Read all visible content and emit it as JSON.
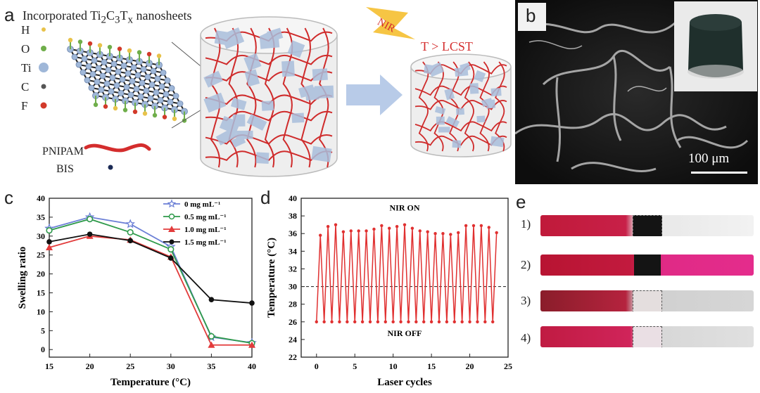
{
  "panel_a": {
    "letter": "a",
    "title_html": "Incorporated Ti<sub>2</sub>C<sub>3</sub>T<sub>x</sub> nanosheets",
    "elements": [
      "H",
      "O",
      "Ti",
      "C",
      "F"
    ],
    "element_colors": [
      "#e8c24a",
      "#6fae4a",
      "#9fb7d8",
      "#555555",
      "#d23a2a"
    ],
    "polymer_labels": [
      "PNIPAM",
      "BIS"
    ],
    "stimulus": "NIR",
    "condition": "T > LCST"
  },
  "panel_b": {
    "letter": "b",
    "scale_bar": "100 μm"
  },
  "panel_c": {
    "letter": "c",
    "chart_data": {
      "type": "line",
      "xlabel": "Temperature (°C)",
      "ylabel": "Swelling ratio",
      "x": [
        15,
        20,
        25,
        30,
        35,
        40
      ],
      "xlim": [
        15,
        40
      ],
      "ylim": [
        -2,
        40
      ],
      "xticks": [
        15,
        20,
        25,
        30,
        35,
        40
      ],
      "yticks": [
        0,
        5,
        10,
        15,
        20,
        25,
        30,
        35,
        40
      ],
      "legend": "top-right",
      "series": [
        {
          "name": "0    mg mL⁻¹",
          "color": "#6b7fd6",
          "marker": "star",
          "values": [
            32,
            35,
            33.2,
            27.2,
            3.3,
            1.8
          ]
        },
        {
          "name": "0.5 mg mL⁻¹",
          "color": "#2e9a4a",
          "marker": "circle-open",
          "values": [
            31.5,
            34.5,
            31,
            26.5,
            3.5,
            1.7
          ]
        },
        {
          "name": "1.0 mg mL⁻¹",
          "color": "#e23b3b",
          "marker": "triangle",
          "values": [
            27,
            30,
            29,
            24.5,
            1.2,
            1.2
          ]
        },
        {
          "name": "1.5 mg mL⁻¹",
          "color": "#111111",
          "marker": "circle",
          "values": [
            28.5,
            30.5,
            28.8,
            24.2,
            13.2,
            12.3
          ]
        }
      ]
    }
  },
  "panel_d": {
    "letter": "d",
    "chart_data": {
      "type": "line",
      "xlabel": "Laser cycles",
      "ylabel": "Temperature (°C)",
      "xlim": [
        -2,
        25
      ],
      "ylim": [
        22,
        40
      ],
      "xticks": [
        0,
        5,
        10,
        15,
        20,
        25
      ],
      "yticks": [
        22,
        24,
        26,
        28,
        30,
        32,
        34,
        36,
        38,
        40
      ],
      "reference_line": 30,
      "annotations": [
        "NIR ON",
        "NIR OFF"
      ],
      "series": [
        {
          "name": "",
          "color": "#e03030",
          "x": [
            0,
            0.5,
            1,
            1.5,
            2,
            2.5,
            3,
            3.5,
            4,
            4.5,
            5,
            5.5,
            6,
            6.5,
            7,
            7.5,
            8,
            8.5,
            9,
            9.5,
            10,
            10.5,
            11,
            11.5,
            12,
            12.5,
            13,
            13.5,
            14,
            14.5,
            15,
            15.5,
            16,
            16.5,
            17,
            17.5,
            18,
            18.5,
            19,
            19.5,
            20,
            20.5,
            21,
            21.5,
            22,
            22.5,
            23,
            23.5
          ],
          "values": [
            26,
            35.8,
            26,
            36.8,
            26,
            37,
            26,
            36.2,
            26,
            36.3,
            26,
            36.3,
            26,
            36.3,
            26,
            36.5,
            26,
            36.9,
            26,
            36.6,
            26,
            36.8,
            26,
            37,
            26,
            36.6,
            26,
            36.3,
            26,
            36.2,
            26,
            36,
            26,
            36,
            26,
            35.9,
            26,
            36.1,
            26,
            36.9,
            26,
            36.9,
            26,
            36.9,
            26,
            36.7,
            26,
            36.1
          ]
        }
      ]
    }
  },
  "panel_e": {
    "letter": "e",
    "rows": [
      "1)",
      "2)",
      "3)",
      "4)"
    ]
  }
}
